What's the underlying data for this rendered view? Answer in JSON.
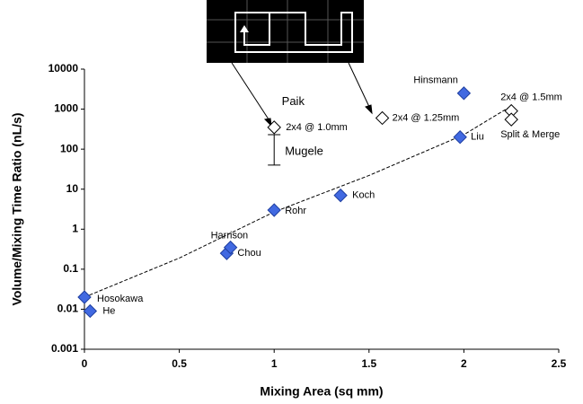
{
  "chart_data": {
    "type": "scatter",
    "xlabel": "Mixing Area (sq mm)",
    "ylabel": "Volume/Mixing Time Ratio (nL/s)",
    "xlim": [
      0,
      2.5
    ],
    "xticks": [
      0,
      0.5,
      1,
      1.5,
      2,
      2.5
    ],
    "ylim": [
      0.001,
      10000
    ],
    "yticks": [
      0.001,
      0.01,
      0.1,
      1,
      10,
      100,
      1000,
      10000
    ],
    "yscale": "log",
    "grid": false,
    "series": [
      {
        "marker": "filled",
        "color": "#4169e1",
        "x": [
          0,
          0.03,
          0.75,
          0.77,
          1.0,
          1.35,
          1.98,
          2.0
        ],
        "values": [
          0.02,
          0.009,
          0.25,
          0.35,
          3,
          7,
          200,
          2500
        ],
        "labels": [
          "Hosokawa",
          "He",
          "Chou",
          "Harrison",
          "Rohr",
          "Koch",
          "Liu",
          "Hinsmann"
        ]
      },
      {
        "marker": "open",
        "color": "#ffffff",
        "x": [
          1.0,
          1.57,
          2.25,
          2.25
        ],
        "values": [
          350,
          600,
          900,
          550
        ],
        "labels": [
          "2x4 @ 1.0mm",
          "2x4 @ 1.25mm",
          "2x4 @ 1.5mm",
          "Split & Merge"
        ]
      }
    ],
    "trendline": {
      "x": [
        0,
        0.5,
        1,
        1.5,
        2,
        2.25
      ],
      "values": [
        0.02,
        0.19,
        2.7,
        22,
        230,
        1200
      ]
    },
    "error_bar": {
      "x": 1.0,
      "low": 40,
      "high": 230,
      "label": "Mugele"
    },
    "annotation": {
      "x": 1.1,
      "y": 1500,
      "text": "Paik"
    }
  }
}
